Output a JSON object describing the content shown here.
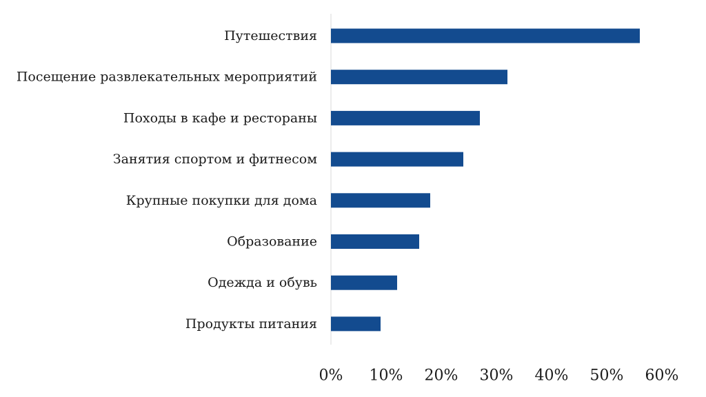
{
  "chart_data": {
    "type": "bar",
    "orientation": "horizontal",
    "title": "",
    "xlabel": "",
    "ylabel": "",
    "categories": [
      "Путешествия",
      "Посещение развлекательных мероприятий",
      "Походы в кафе и рестораны",
      "Занятия спортом и фитнесом",
      "Крупные покупки для дома",
      "Образование",
      "Одежда и обувь",
      "Продукты питания"
    ],
    "values": [
      56,
      32,
      27,
      24,
      18,
      16,
      12,
      9
    ],
    "xlim": [
      0,
      60
    ],
    "xticks": [
      0,
      10,
      20,
      30,
      40,
      50,
      60
    ],
    "tick_labels": [
      "0%",
      "10%",
      "20%",
      "30%",
      "40%",
      "50%",
      "60%"
    ],
    "grid": false,
    "legend": "none",
    "bar_color": "#134b8f",
    "axis_color": "#d9d9d9"
  }
}
